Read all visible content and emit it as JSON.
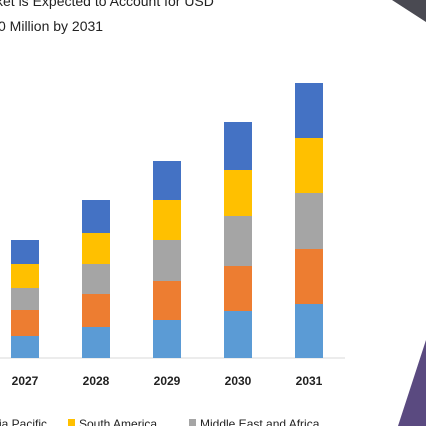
{
  "chart_data": {
    "type": "bar",
    "stacked": true,
    "title": "ket is Expected to Account for USD",
    "subtitle": "0 Million by 2031",
    "categories": [
      "2027",
      "2028",
      "2029",
      "2030",
      "2031"
    ],
    "series": [
      {
        "color": "#5b9bd5",
        "values": [
          22,
          31,
          38,
          47,
          54
        ]
      },
      {
        "color": "#ed7d31",
        "values": [
          26,
          33,
          39,
          45,
          55
        ]
      },
      {
        "name": "Middle East and Africa",
        "color": "#a5a5a5",
        "values": [
          22,
          30,
          41,
          50,
          56
        ]
      },
      {
        "name": "South America",
        "color": "#ffc000",
        "values": [
          24,
          31,
          40,
          46,
          55
        ]
      },
      {
        "name": "ia Pacific",
        "color": "#4472c4",
        "values": [
          24,
          33,
          39,
          48,
          55
        ]
      }
    ]
  }
}
